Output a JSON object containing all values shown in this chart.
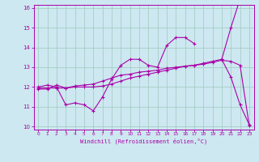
{
  "xlabel": "Windchill (Refroidissement éolien,°C)",
  "background_color": "#cde8f0",
  "grid_color": "#a0c8c0",
  "line_color": "#aa00aa",
  "x_values": [
    0,
    1,
    2,
    3,
    4,
    5,
    6,
    7,
    8,
    9,
    10,
    11,
    12,
    13,
    14,
    15,
    16,
    17,
    18,
    19,
    20,
    21,
    22,
    23
  ],
  "line1_y": [
    12.0,
    12.1,
    12.0,
    11.1,
    11.2,
    11.1,
    10.8,
    11.5,
    12.4,
    13.1,
    13.4,
    13.4,
    13.1,
    13.0,
    14.1,
    14.5,
    14.5,
    14.2,
    null,
    null,
    13.4,
    12.5,
    11.1,
    10.1
  ],
  "line2_y": [
    11.9,
    11.9,
    12.1,
    11.95,
    12.05,
    12.1,
    12.15,
    12.3,
    12.45,
    12.6,
    12.65,
    12.75,
    12.8,
    12.85,
    12.95,
    13.0,
    13.05,
    13.1,
    13.15,
    13.25,
    13.35,
    13.3,
    13.1,
    10.05
  ],
  "line3_y": [
    11.95,
    11.95,
    11.95,
    11.95,
    12.0,
    12.0,
    12.0,
    12.05,
    12.15,
    12.3,
    12.45,
    12.55,
    12.65,
    12.75,
    12.85,
    12.95,
    13.05,
    13.1,
    13.2,
    13.3,
    13.4,
    15.0,
    16.45,
    16.6
  ],
  "ylim": [
    10,
    16
  ],
  "yticks": [
    10,
    11,
    12,
    13,
    14,
    15,
    16
  ],
  "xlim": [
    -0.5,
    23.5
  ],
  "xticks": [
    0,
    1,
    2,
    3,
    4,
    5,
    6,
    7,
    8,
    9,
    10,
    11,
    12,
    13,
    14,
    15,
    16,
    17,
    18,
    19,
    20,
    21,
    22,
    23
  ]
}
